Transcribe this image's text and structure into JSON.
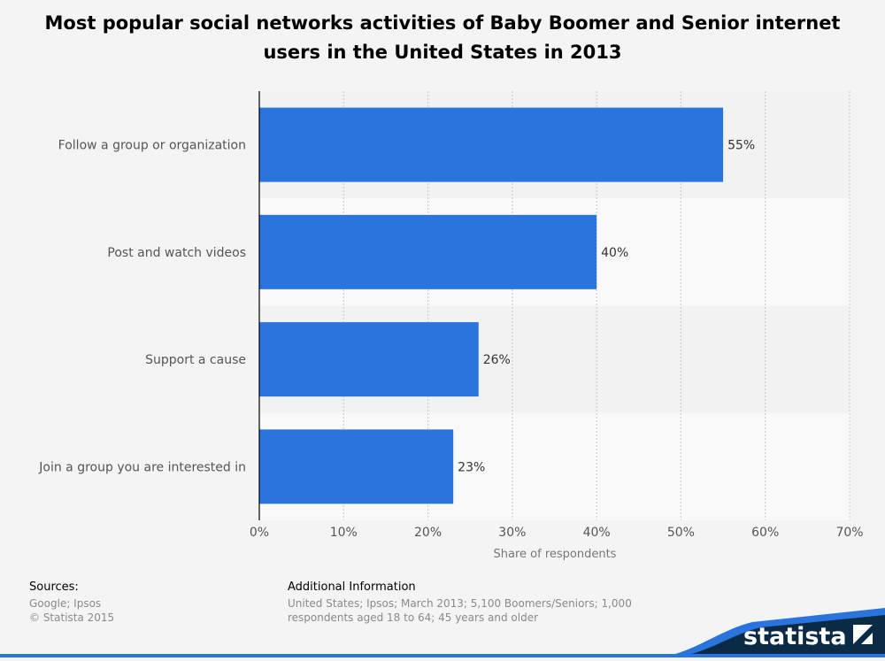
{
  "title": "Most popular social networks activities of Baby Boomer and Senior internet users in the United States in 2013",
  "chart_data": {
    "type": "bar",
    "orientation": "horizontal",
    "categories": [
      "Follow a group or organization",
      "Post and watch videos",
      "Support a cause",
      "Join a group you are interested in"
    ],
    "values": [
      55,
      40,
      26,
      23
    ],
    "value_labels": [
      "55%",
      "40%",
      "26%",
      "23%"
    ],
    "xlabel": "Share of respondents",
    "ylabel": "",
    "xlim": [
      0,
      70
    ],
    "ticks": [
      0,
      10,
      20,
      30,
      40,
      50,
      60,
      70
    ],
    "tick_labels": [
      "0%",
      "10%",
      "20%",
      "30%",
      "40%",
      "50%",
      "60%",
      "70%"
    ],
    "grid": true,
    "bar_color": "#2a75dd"
  },
  "footer": {
    "sources_heading": "Sources:",
    "sources_lines": [
      "Google; Ipsos",
      "© Statista 2015"
    ],
    "additional_heading": "Additional Information",
    "additional_lines": [
      "United States; Ipsos; March 2013; 5,100 Boomers/Seniors; 1,000",
      "respondents aged 18 to 64; 45 years and older"
    ]
  },
  "brand": {
    "name": "statista",
    "color": "#0b2a45",
    "accent": "#2a75dd"
  }
}
